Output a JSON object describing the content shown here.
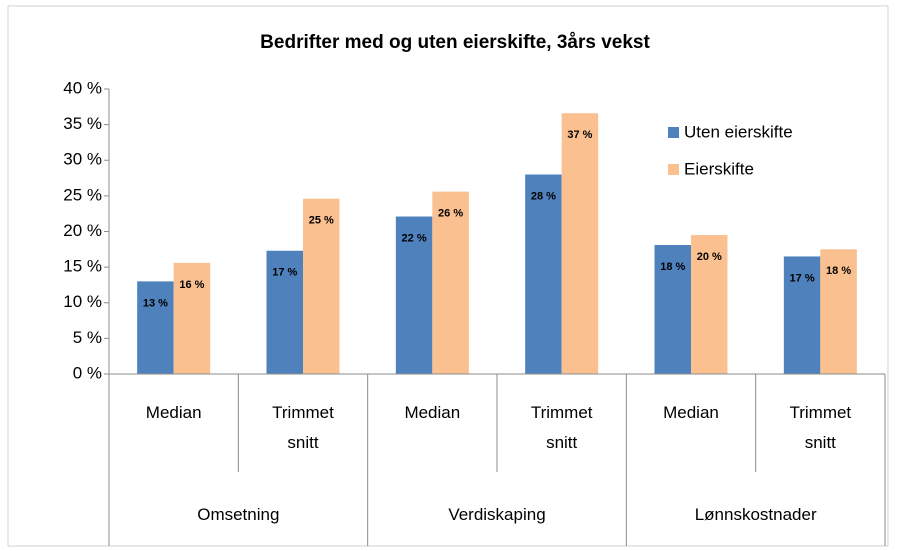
{
  "chart_data": {
    "type": "bar",
    "title": "Bedrifter med og uten eierskifte, 3års vekst",
    "categories": [
      "Median",
      "Trimmet snitt",
      "Median",
      "Trimmet snitt",
      "Median",
      "Trimmet snitt"
    ],
    "groups": [
      "Omsetning",
      "Verdiskaping",
      "Lønnskostnader"
    ],
    "series": [
      {
        "name": "Uten eierskifte",
        "color": "#4f81bd",
        "values": [
          13,
          17.3,
          22.1,
          28,
          18.1,
          16.5
        ],
        "value_labels": [
          "13 %",
          "17 %",
          "22 %",
          "28 %",
          "18 %",
          "17 %"
        ]
      },
      {
        "name": "Eierskifte",
        "color": "#fac090",
        "values": [
          15.6,
          24.6,
          25.6,
          36.6,
          19.5,
          17.5
        ],
        "value_labels": [
          "16 %",
          "25 %",
          "26 %",
          "37 %",
          "20 %",
          "18 %"
        ]
      }
    ],
    "ylim": [
      0,
      40
    ],
    "yticks": [
      {
        "value": 0,
        "label": "0 %"
      },
      {
        "value": 5,
        "label": "5 %"
      },
      {
        "value": 10,
        "label": "10 %"
      },
      {
        "value": 15,
        "label": "15 %"
      },
      {
        "value": 20,
        "label": "20 %"
      },
      {
        "value": 25,
        "label": "25 %"
      },
      {
        "value": 30,
        "label": "30 %"
      },
      {
        "value": 35,
        "label": "35 %"
      },
      {
        "value": 40,
        "label": "40 %"
      }
    ],
    "legend": "upper right"
  }
}
